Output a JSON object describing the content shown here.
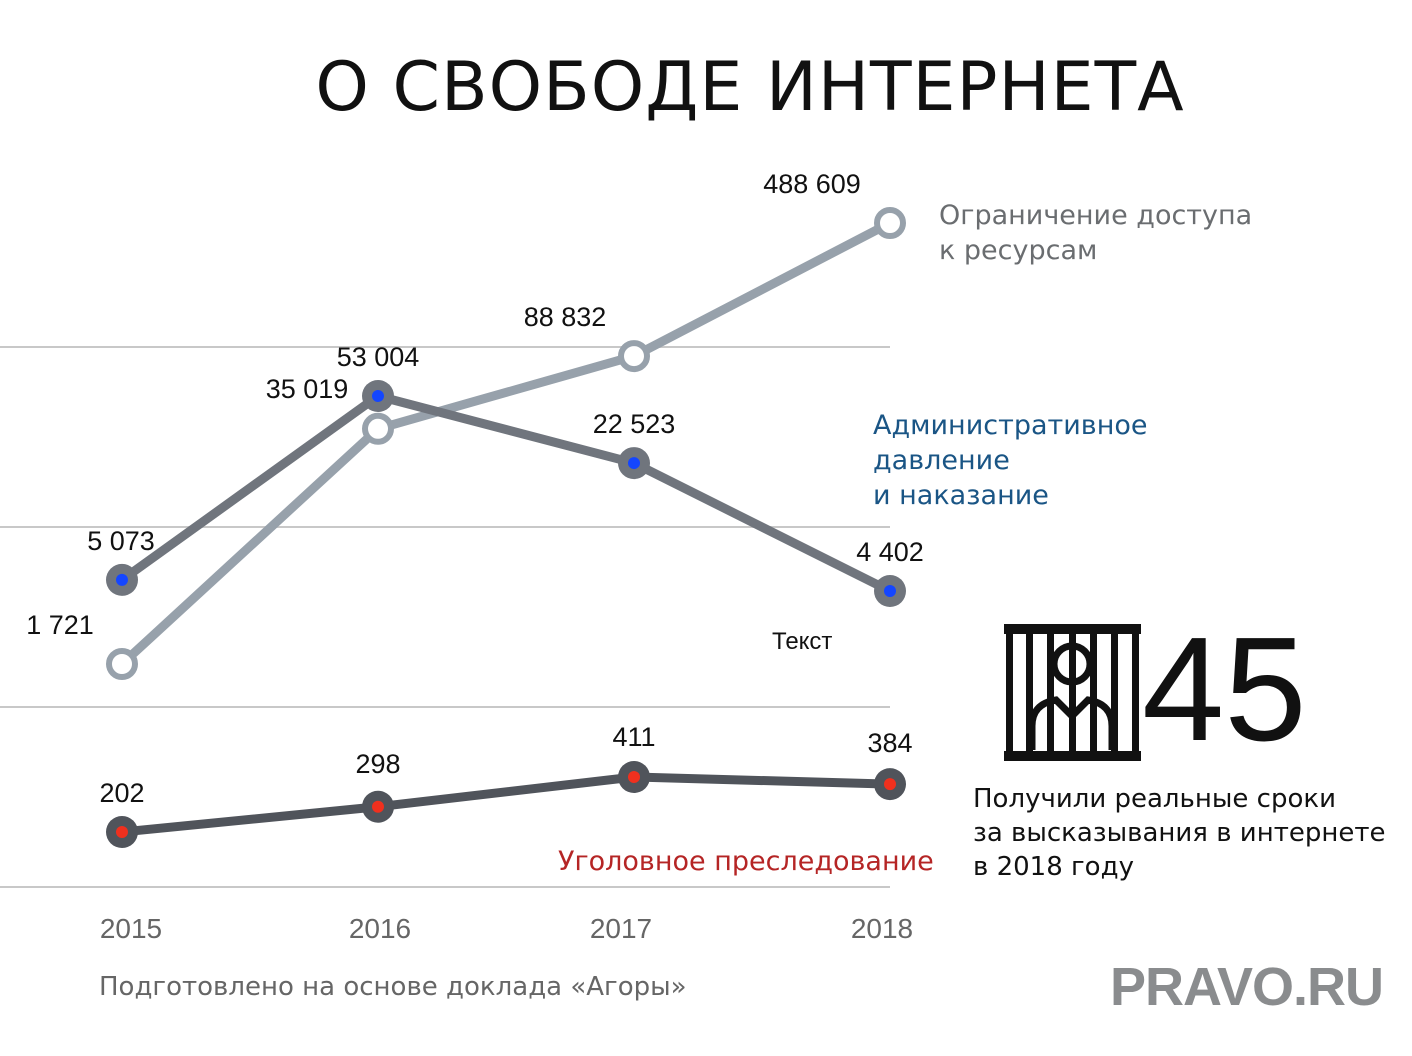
{
  "title": "О СВОБОДЕ ИНТЕРНЕТА",
  "chart_data": {
    "type": "line",
    "categories": [
      "2015",
      "2016",
      "2017",
      "2018"
    ],
    "series": [
      {
        "name": "Ограничение доступа к ресурсам",
        "name_lines": [
          "Ограничение доступа",
          "к ресурсам"
        ],
        "values": [
          1721,
          35019,
          88832,
          488609
        ],
        "value_labels": [
          "1 721",
          "35 019",
          "88 832",
          "488 609"
        ],
        "color": "#97a1ab",
        "label_color": "#6a6d70",
        "marker": "hollow"
      },
      {
        "name": "Административное давление и наказание",
        "name_lines": [
          "Административное",
          "давление",
          "и наказание"
        ],
        "values": [
          5073,
          53004,
          22523,
          4402
        ],
        "value_labels": [
          "5 073",
          "53 004",
          "22 523",
          "4 402"
        ],
        "color": "#70757d",
        "label_color": "#1a5585",
        "marker": "blue-dot"
      },
      {
        "name": "Уголовное преследование",
        "name_lines": [
          "Уголовное преследование"
        ],
        "values": [
          202,
          298,
          411,
          384
        ],
        "value_labels": [
          "202",
          "298",
          "411",
          "384"
        ],
        "color": "#50545b",
        "label_color": "#b52525",
        "marker": "red-dot"
      }
    ],
    "grid": true,
    "legend": "inline labels at right"
  },
  "annotation": "Текст",
  "stat": {
    "number": "45",
    "caption_lines": [
      "Получили реальные сроки",
      "за высказывания в интернете",
      "в 2018 году"
    ],
    "icon": "prisoner-behind-bars-icon"
  },
  "source": "Подготовлено на основе доклада «Агоры»",
  "brand": "PRAVO.RU",
  "colors": {
    "dot_blue": "#1446ff",
    "dot_red": "#f0301e",
    "grid": "#c8c8c8",
    "axis_text": "#666666"
  }
}
